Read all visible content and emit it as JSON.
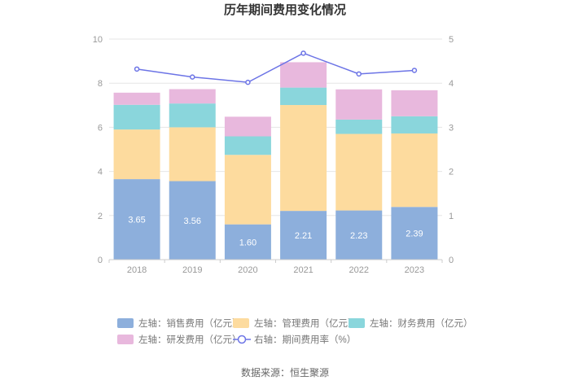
{
  "chart_data": {
    "type": "bar",
    "stacked": true,
    "title": "历年期间费用变化情况",
    "categories": [
      "2018",
      "2019",
      "2020",
      "2021",
      "2022",
      "2023"
    ],
    "y_left": {
      "range": [
        0,
        10
      ],
      "ticks": [
        "0",
        "2",
        "4",
        "6",
        "8",
        "10"
      ]
    },
    "y_right": {
      "range": [
        0,
        5
      ],
      "ticks": [
        "0",
        "1",
        "2",
        "3",
        "4",
        "5"
      ]
    },
    "series": [
      {
        "name": "左轴：销售费用（亿元）",
        "axis": "left",
        "color": "#8dafdc",
        "values": [
          3.65,
          3.56,
          1.6,
          2.21,
          2.23,
          2.39
        ],
        "labels": [
          "3.65",
          "3.56",
          "1.60",
          "2.21",
          "2.23",
          "2.39"
        ]
      },
      {
        "name": "左轴：管理费用（亿元）",
        "axis": "left",
        "color": "#fddb9e",
        "values": [
          2.25,
          2.44,
          3.15,
          4.8,
          3.47,
          3.33
        ]
      },
      {
        "name": "左轴：财务费用（亿元）",
        "axis": "left",
        "color": "#8ad6dc",
        "values": [
          1.12,
          1.08,
          0.84,
          0.79,
          0.65,
          0.78
        ]
      },
      {
        "name": "左轴：研发费用（亿元）",
        "axis": "left",
        "color": "#e8b8dd",
        "values": [
          0.55,
          0.65,
          0.89,
          1.15,
          1.37,
          1.18
        ]
      },
      {
        "name": "右轴：期间费用率（%）",
        "axis": "right",
        "type": "line",
        "color": "#6c74e6",
        "values": [
          4.32,
          4.14,
          4.02,
          4.68,
          4.21,
          4.29
        ]
      }
    ],
    "source": "数据来源：恒生聚源"
  }
}
